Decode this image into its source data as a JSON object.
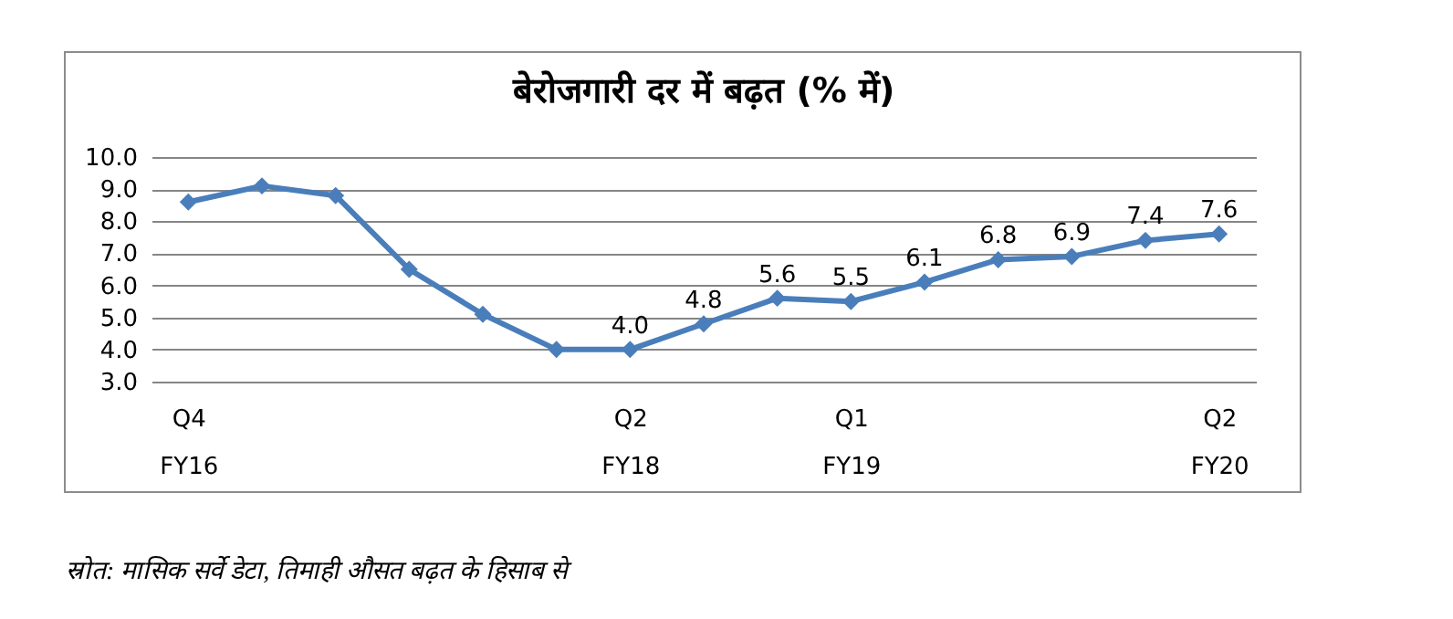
{
  "chart_data": {
    "type": "line",
    "title": "बेरोजगारी दर में बढ़त (% में)",
    "categories": [
      "Q4 FY16",
      null,
      null,
      null,
      null,
      null,
      "Q2 FY18",
      null,
      null,
      "Q1 FY19",
      null,
      null,
      null,
      null,
      "Q2 FY20"
    ],
    "series": [
      {
        "color": "#4a7ebb",
        "values": [
          8.6,
          9.1,
          8.8,
          6.5,
          5.1,
          4.0,
          4.0,
          4.8,
          5.6,
          5.5,
          6.1,
          6.8,
          6.9,
          7.4,
          7.6
        ],
        "value_labels": [
          null,
          null,
          null,
          null,
          null,
          null,
          "4.0",
          "4.8",
          "5.6",
          "5.5",
          "6.1",
          "6.8",
          "6.9",
          "7.4",
          "7.6"
        ]
      }
    ],
    "ylim": [
      3,
      10
    ],
    "yticks": [
      {
        "value": 3,
        "label": "3.0"
      },
      {
        "value": 4,
        "label": "4.0"
      },
      {
        "value": 5,
        "label": "5.0"
      },
      {
        "value": 6,
        "label": "6.0"
      },
      {
        "value": 7,
        "label": "7.0"
      },
      {
        "value": 8,
        "label": "8.0"
      },
      {
        "value": 9,
        "label": "9.0"
      },
      {
        "value": 10,
        "label": "10.0"
      }
    ],
    "grid": "y",
    "marker": "diamond",
    "line_style": "solid",
    "annotations": [
      "स्रोत: मासिक सर्वे डेटा, तिमाही औसत बढ़त के हिसाब से"
    ]
  }
}
